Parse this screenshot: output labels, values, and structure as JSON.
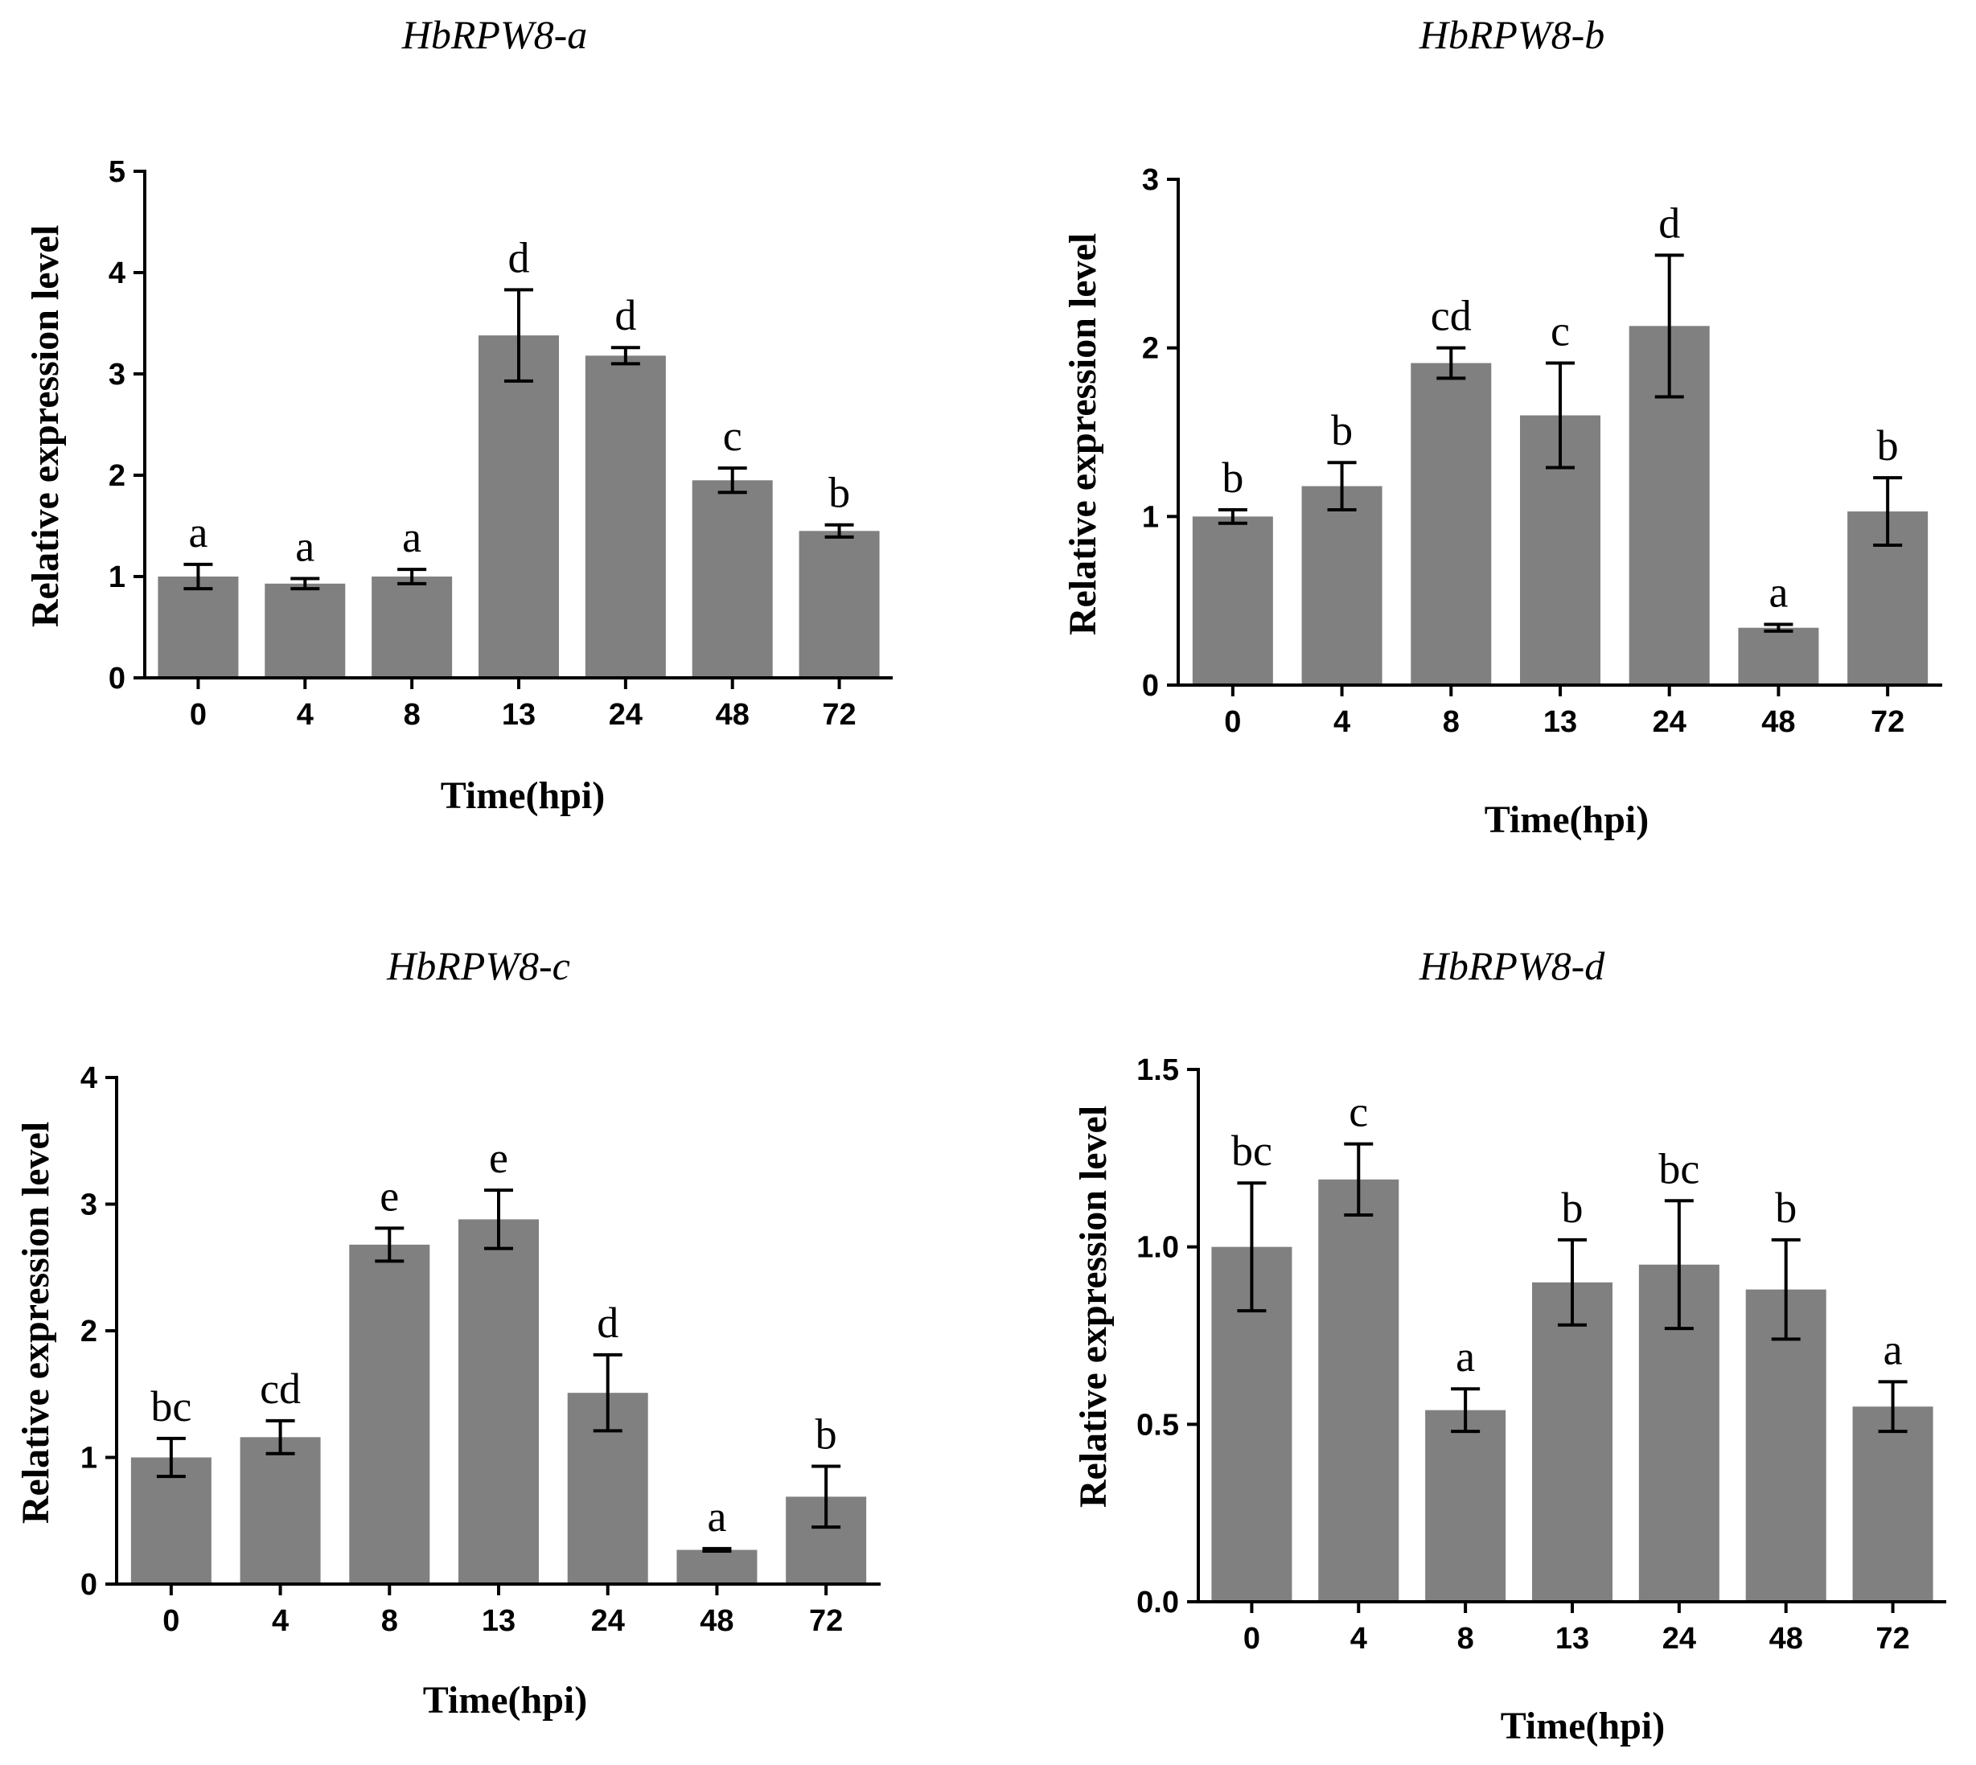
{
  "chart_data": [
    {
      "type": "bar",
      "title": "HbRPW8-a",
      "xlabel": "Time(hpi)",
      "ylabel": "Relative expression level",
      "categories": [
        "0",
        "4",
        "8",
        "13",
        "24",
        "48",
        "72"
      ],
      "values": [
        1.0,
        0.93,
        1.0,
        3.38,
        3.18,
        1.95,
        1.45
      ],
      "errors": [
        0.12,
        0.05,
        0.07,
        0.45,
        0.08,
        0.12,
        0.06
      ],
      "significance": [
        "a",
        "a",
        "a",
        "d",
        "d",
        "c",
        "b"
      ],
      "ylim": [
        0,
        5
      ],
      "yticks": [
        "0",
        "1",
        "2",
        "3",
        "4",
        "5"
      ],
      "ytick_values": [
        0,
        1,
        2,
        3,
        4,
        5
      ]
    },
    {
      "type": "bar",
      "title": "HbRPW8-b",
      "xlabel": "Time(hpi)",
      "ylabel": "Relative expression level",
      "categories": [
        "0",
        "4",
        "8",
        "13",
        "24",
        "48",
        "72"
      ],
      "values": [
        1.0,
        1.18,
        1.91,
        1.6,
        2.13,
        0.34,
        1.03
      ],
      "errors": [
        0.04,
        0.14,
        0.09,
        0.31,
        0.42,
        0.02,
        0.2
      ],
      "significance": [
        "b",
        "b",
        "cd",
        "c",
        "d",
        "a",
        "b"
      ],
      "ylim": [
        0,
        3
      ],
      "yticks": [
        "0",
        "1",
        "2",
        "3"
      ],
      "ytick_values": [
        0,
        1,
        2,
        3
      ]
    },
    {
      "type": "bar",
      "title": "HbRPW8-c",
      "xlabel": "Time(hpi)",
      "ylabel": "Relative expression level",
      "categories": [
        "0",
        "4",
        "8",
        "13",
        "24",
        "48",
        "72"
      ],
      "values": [
        1.0,
        1.16,
        2.68,
        2.88,
        1.51,
        0.27,
        0.69
      ],
      "errors": [
        0.15,
        0.13,
        0.13,
        0.23,
        0.3,
        0.01,
        0.24
      ],
      "significance": [
        "bc",
        "cd",
        "e",
        "e",
        "d",
        "a",
        "b"
      ],
      "ylim": [
        0,
        4
      ],
      "yticks": [
        "0",
        "1",
        "2",
        "3",
        "4"
      ],
      "ytick_values": [
        0,
        1,
        2,
        3,
        4
      ]
    },
    {
      "type": "bar",
      "title": "HbRPW8-d",
      "xlabel": "Time(hpi)",
      "ylabel": "Relative expression level",
      "categories": [
        "0",
        "4",
        "8",
        "13",
        "24",
        "48",
        "72"
      ],
      "values": [
        1.0,
        1.19,
        0.54,
        0.9,
        0.95,
        0.88,
        0.55
      ],
      "errors": [
        0.18,
        0.1,
        0.06,
        0.12,
        0.18,
        0.14,
        0.07
      ],
      "significance": [
        "bc",
        "c",
        "a",
        "b",
        "bc",
        "b",
        "a"
      ],
      "ylim": [
        0,
        1.5
      ],
      "yticks": [
        "0.0",
        "0.5",
        "1.0",
        "1.5"
      ],
      "ytick_values": [
        0,
        0.5,
        1.0,
        1.5
      ]
    }
  ]
}
